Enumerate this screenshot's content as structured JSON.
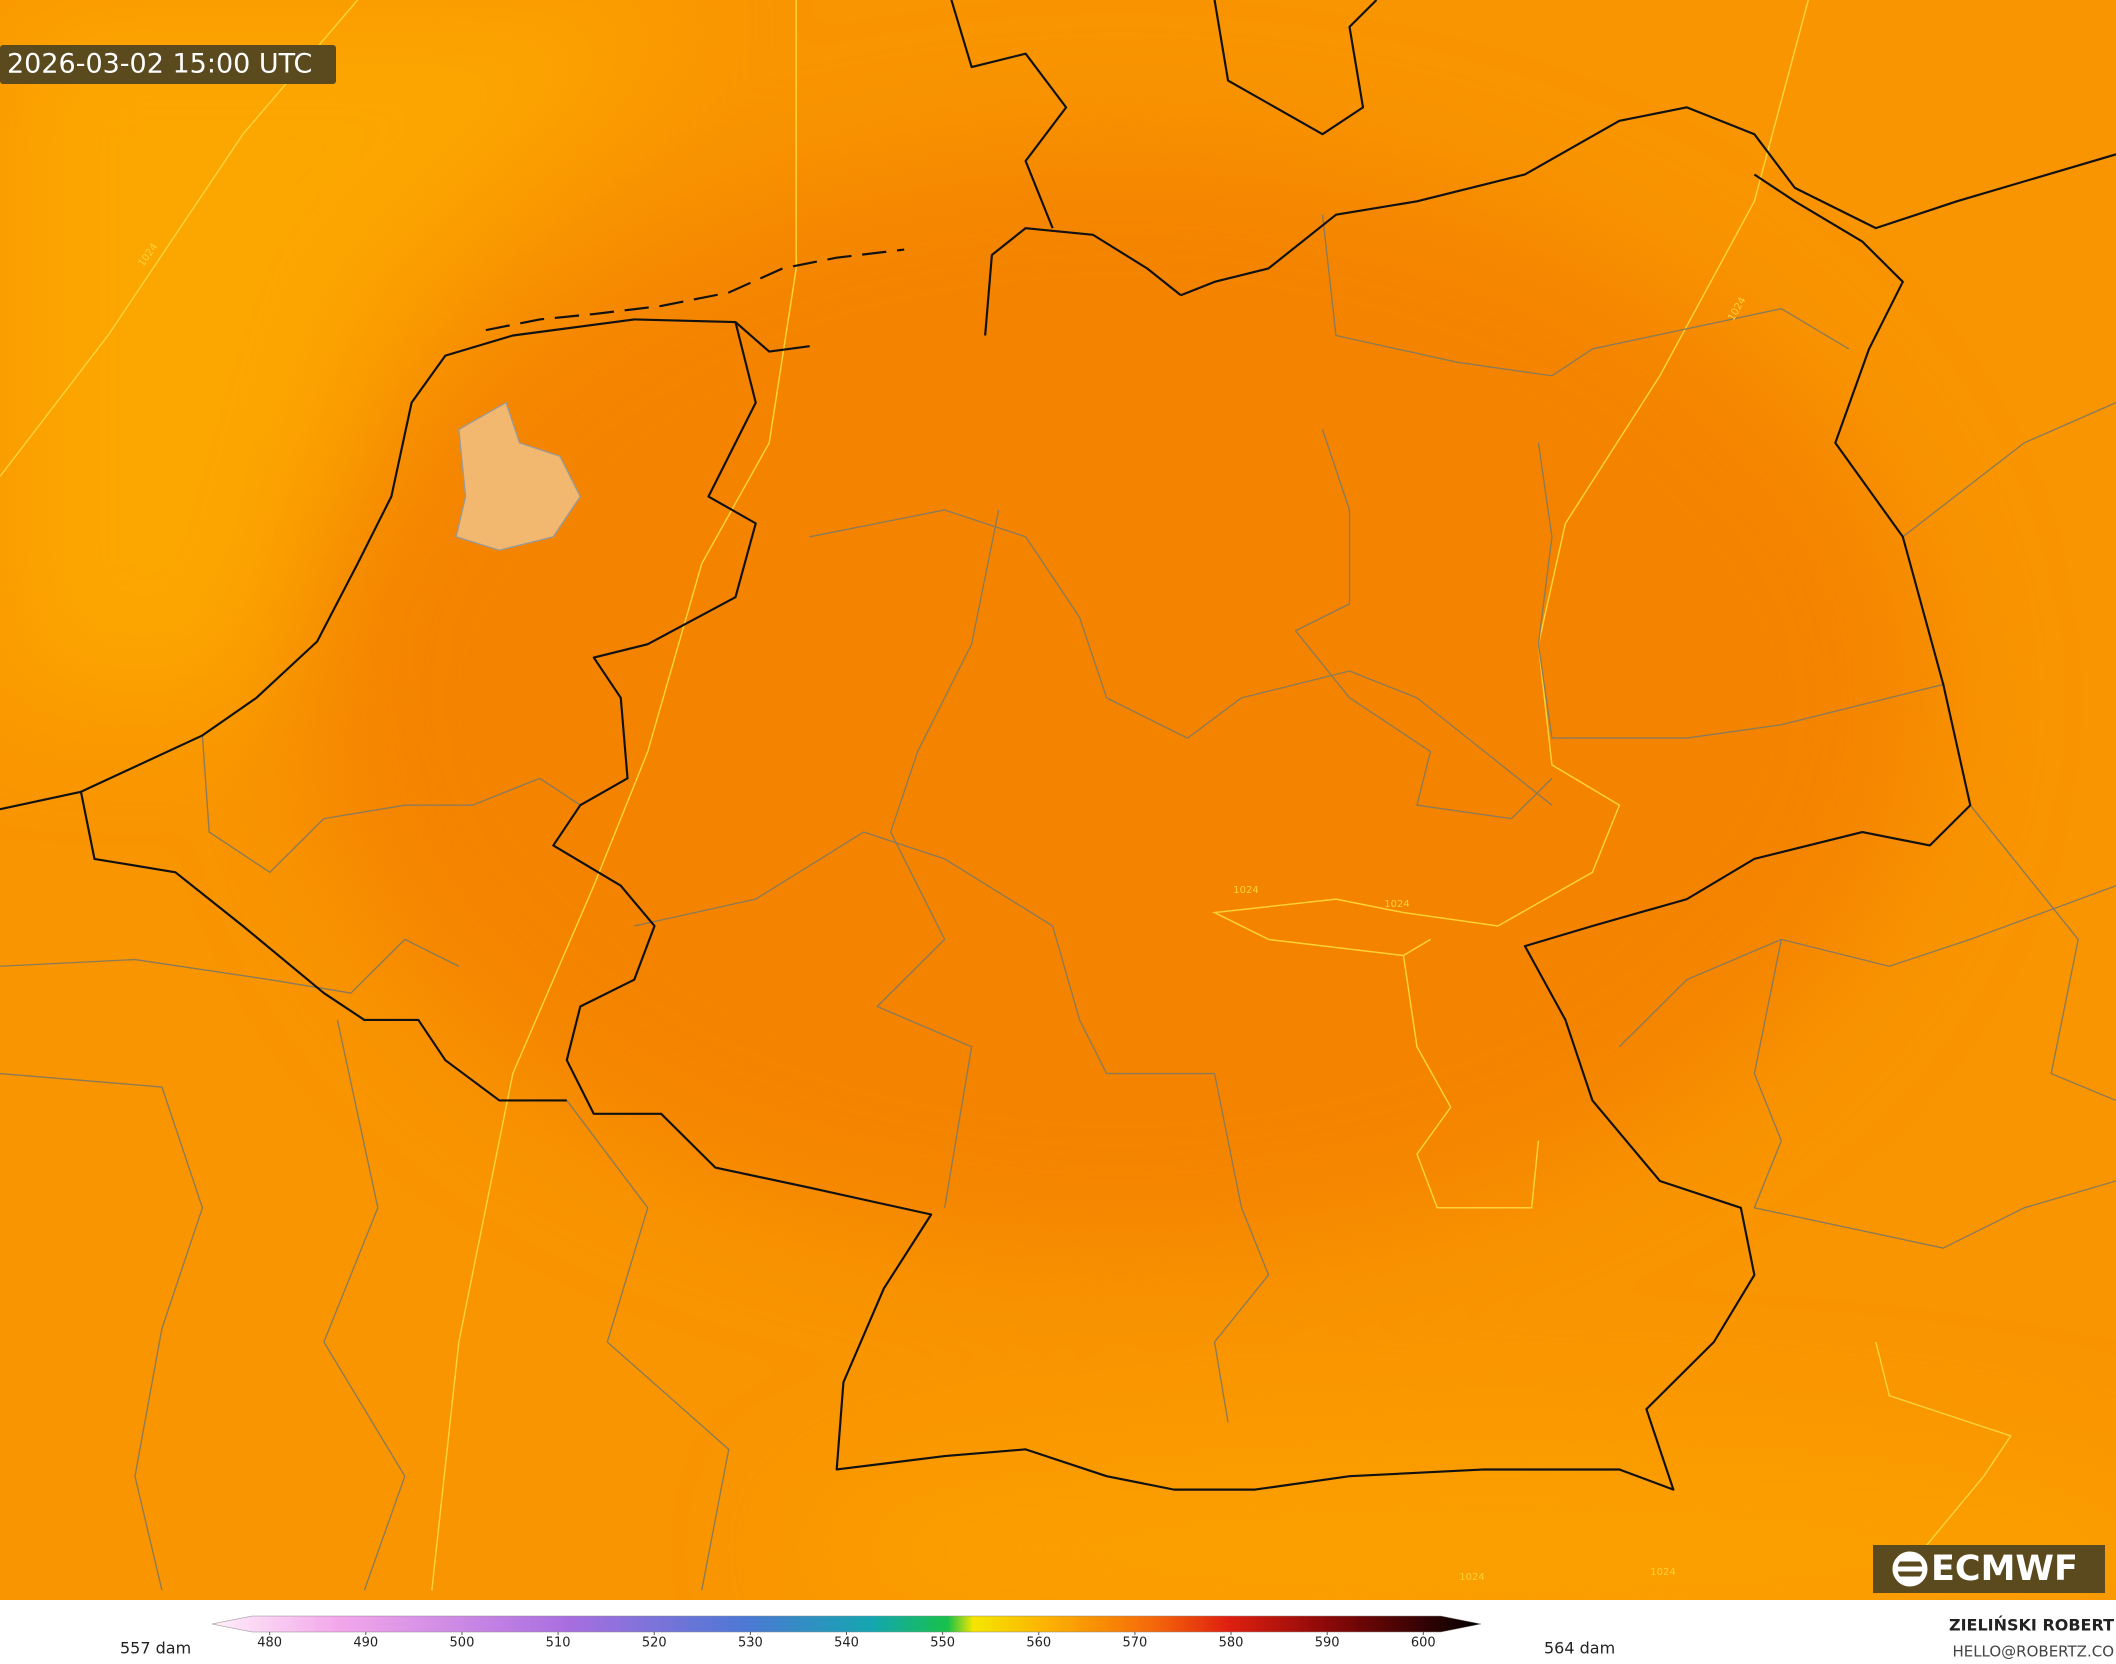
{
  "timestamp": "2026-03-02 15:00 UTC",
  "logo": "ECMWF",
  "contour_labels": [
    "1024",
    "1024",
    "1024",
    "1024",
    "1024",
    "1024"
  ],
  "colorbar": {
    "lim": [
      474,
      606
    ],
    "ticks": [
      480,
      490,
      500,
      510,
      520,
      530,
      540,
      550,
      560,
      570,
      580,
      590,
      600
    ],
    "min_label": "557 dam",
    "max_label": "564 dam"
  },
  "credit": {
    "author": "ZIELIŃSKI ROBERT",
    "contact": "HELLO@ROBERTZ.CO"
  }
}
